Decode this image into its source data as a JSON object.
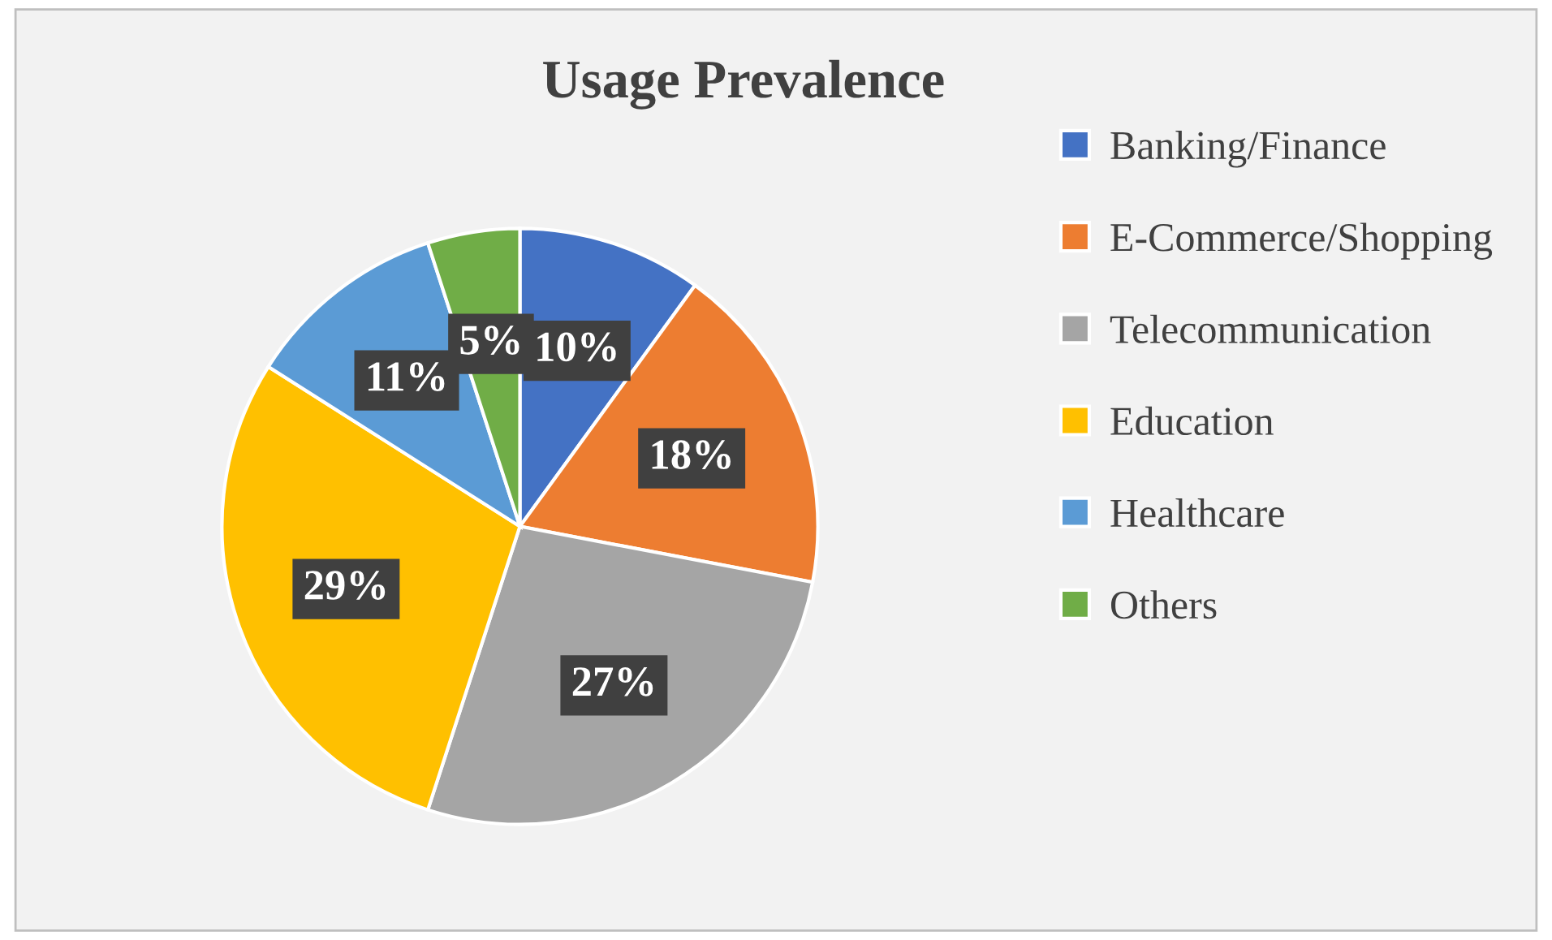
{
  "chart_data": {
    "type": "pie",
    "title": "Usage Prevalence",
    "categories": [
      "Banking/Finance",
      "E-Commerce/Shopping",
      "Telecommunication",
      "Education",
      "Healthcare",
      "Others"
    ],
    "values": [
      10,
      18,
      27,
      29,
      11,
      5
    ],
    "colors": [
      "#4472c4",
      "#ed7d31",
      "#a5a5a5",
      "#ffc000",
      "#5b9bd5",
      "#70ad47"
    ],
    "value_labels": [
      "10%",
      "18%",
      "27%",
      "29%",
      "11%",
      "5%"
    ],
    "legend": "right"
  }
}
